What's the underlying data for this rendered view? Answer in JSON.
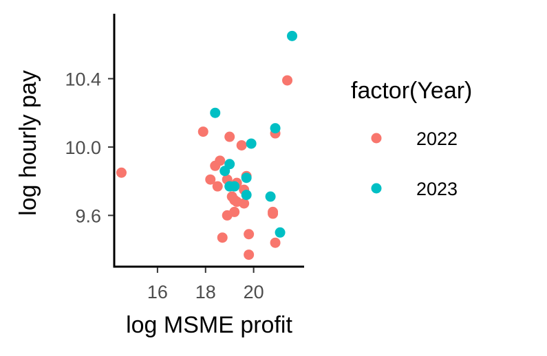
{
  "chart_data": {
    "type": "scatter",
    "xlabel": "log MSME profit",
    "ylabel": "log hourly pay",
    "xlim": [
      14.2,
      22.1
    ],
    "ylim": [
      9.3,
      10.78
    ],
    "x_ticks": [
      16,
      18,
      20
    ],
    "x_tick_labels": [
      "16",
      "18",
      "20"
    ],
    "y_ticks": [
      9.6,
      10.0,
      10.4
    ],
    "y_tick_labels": [
      "9.6",
      "10.0",
      "10.4"
    ],
    "grid": false,
    "legend": {
      "title": "factor(Year)",
      "position": "right"
    },
    "series": [
      {
        "name": "2022",
        "color": "#F8766D",
        "points": [
          {
            "x": 14.5,
            "y": 9.85
          },
          {
            "x": 17.9,
            "y": 10.09
          },
          {
            "x": 18.2,
            "y": 9.81
          },
          {
            "x": 18.4,
            "y": 9.89
          },
          {
            "x": 18.6,
            "y": 9.92
          },
          {
            "x": 18.5,
            "y": 9.77
          },
          {
            "x": 18.7,
            "y": 9.47
          },
          {
            "x": 18.9,
            "y": 9.81
          },
          {
            "x": 18.9,
            "y": 9.6
          },
          {
            "x": 19.0,
            "y": 10.06
          },
          {
            "x": 19.1,
            "y": 9.71
          },
          {
            "x": 19.2,
            "y": 9.69
          },
          {
            "x": 19.2,
            "y": 9.62
          },
          {
            "x": 19.3,
            "y": 9.68
          },
          {
            "x": 19.3,
            "y": 9.79
          },
          {
            "x": 19.5,
            "y": 10.01
          },
          {
            "x": 19.6,
            "y": 9.67
          },
          {
            "x": 19.6,
            "y": 9.75
          },
          {
            "x": 19.7,
            "y": 9.83
          },
          {
            "x": 19.8,
            "y": 9.49
          },
          {
            "x": 19.8,
            "y": 9.37
          },
          {
            "x": 20.8,
            "y": 9.62
          },
          {
            "x": 20.8,
            "y": 9.61
          },
          {
            "x": 20.9,
            "y": 9.44
          },
          {
            "x": 20.9,
            "y": 10.08
          },
          {
            "x": 21.4,
            "y": 10.39
          }
        ]
      },
      {
        "name": "2023",
        "color": "#00BFC4",
        "points": [
          {
            "x": 18.4,
            "y": 10.2
          },
          {
            "x": 18.8,
            "y": 9.86
          },
          {
            "x": 19.0,
            "y": 9.9
          },
          {
            "x": 19.0,
            "y": 9.77
          },
          {
            "x": 19.2,
            "y": 9.77
          },
          {
            "x": 19.7,
            "y": 9.82
          },
          {
            "x": 19.7,
            "y": 9.72
          },
          {
            "x": 19.9,
            "y": 10.02
          },
          {
            "x": 20.7,
            "y": 9.71
          },
          {
            "x": 20.9,
            "y": 10.11
          },
          {
            "x": 21.1,
            "y": 9.5
          },
          {
            "x": 21.6,
            "y": 10.65
          }
        ]
      }
    ]
  }
}
